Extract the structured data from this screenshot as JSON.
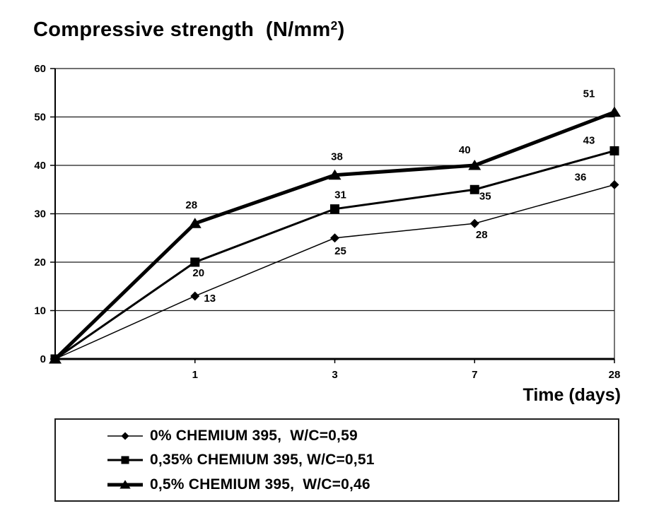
{
  "header": {
    "title_main": "Compressive strength  (N/mm",
    "title_sup": "2",
    "title_suffix": ")"
  },
  "axes": {
    "x_title": "Time (days)"
  },
  "colors": {
    "ink": "#000000",
    "grid": "#1a1a1a",
    "background": "#ffffff"
  },
  "chart_data": {
    "type": "line",
    "title": "Compressive strength (N/mm²)",
    "xlabel": "Time (days)",
    "ylabel": "",
    "x_values": [
      0,
      1,
      3,
      7,
      28
    ],
    "x_spacing": "categorical-even",
    "x_tick_labels": [
      "1",
      "3",
      "7",
      "28"
    ],
    "ylim": [
      0,
      60
    ],
    "yticks": [
      0,
      10,
      20,
      30,
      40,
      50,
      60
    ],
    "grid": "horizontal",
    "data_labels": true,
    "legend_position": "bottom-box",
    "series": [
      {
        "name": "0% CHEMIUM 395,  W/C=0,59",
        "marker": "diamond",
        "line_weight": "thin",
        "values": [
          0,
          13,
          25,
          28,
          36
        ],
        "label_offsets": [
          [
            21,
            3
          ],
          [
            8,
            18
          ],
          [
            10,
            16
          ],
          [
            -48,
            -11
          ]
        ]
      },
      {
        "name": "0,35% CHEMIUM 395, W/C=0,51",
        "marker": "square",
        "line_weight": "medium",
        "values": [
          0,
          20,
          31,
          35,
          43
        ],
        "label_offsets": [
          [
            5,
            15
          ],
          [
            8,
            -20
          ],
          [
            15,
            9
          ],
          [
            -36,
            -15
          ]
        ]
      },
      {
        "name": "0,5% CHEMIUM 395,  W/C=0,46",
        "marker": "triangle",
        "line_weight": "thick",
        "values": [
          0,
          28,
          38,
          40,
          51
        ],
        "label_offsets": [
          [
            -5,
            -26
          ],
          [
            3,
            -26
          ],
          [
            -14,
            -22
          ],
          [
            -36,
            -26
          ]
        ]
      }
    ]
  }
}
